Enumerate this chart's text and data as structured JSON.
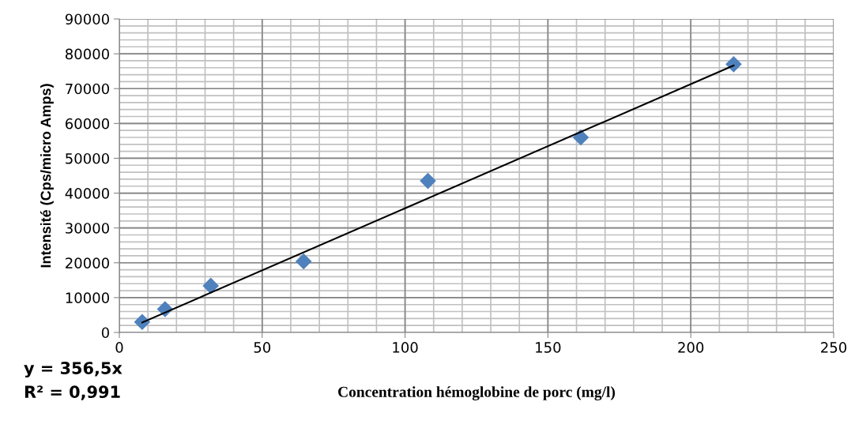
{
  "chart_data": {
    "type": "scatter",
    "xlabel": "Concentration hémoglobine de porc (mg/l)",
    "ylabel": "Intensité (Cps/micro Amps)",
    "series": [
      {
        "color": "#4f81bd",
        "marker": "diamond",
        "x": [
          8,
          16,
          32,
          64.5,
          108,
          161.5,
          215
        ],
        "values": [
          3000,
          6700,
          13400,
          20400,
          43500,
          56000,
          77000
        ]
      },
      {
        "type": "line",
        "color": "#000000",
        "marker": "none",
        "line_style": "solid",
        "x": [
          8,
          215
        ],
        "values": [
          2850,
          76650
        ]
      }
    ],
    "annotations": [
      "y = 356,5x",
      "R² = 0,991"
    ],
    "xlim": [
      0,
      250
    ],
    "xticks": [
      0,
      50,
      100,
      150,
      200,
      250
    ],
    "ylim": [
      0,
      90000
    ],
    "yticks": [
      0,
      10000,
      20000,
      30000,
      40000,
      50000,
      60000,
      70000,
      80000,
      90000
    ],
    "grid": true,
    "legend": false
  }
}
